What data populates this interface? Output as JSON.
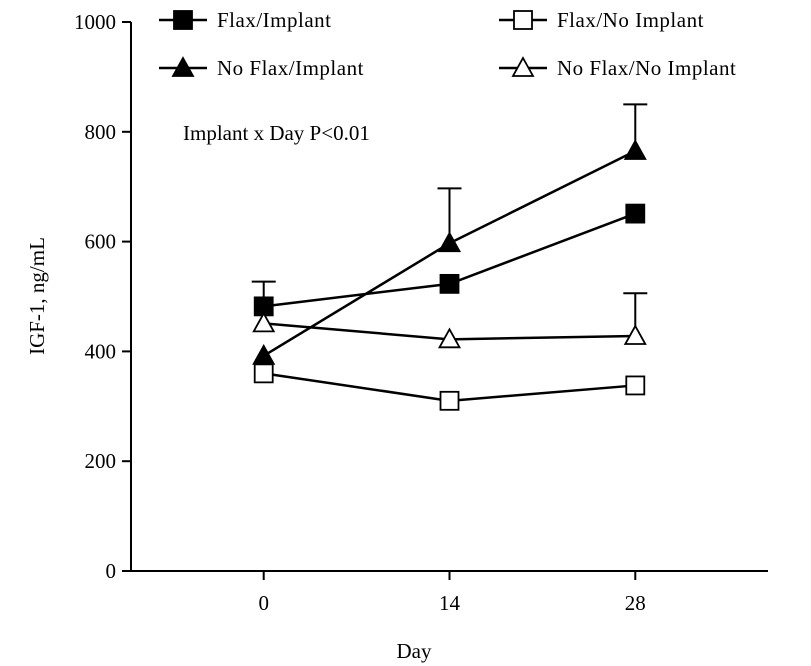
{
  "chart_data": {
    "type": "line",
    "title": "",
    "xlabel": "Day",
    "ylabel": "IGF-1, ng/mL",
    "x": [
      0,
      14,
      28
    ],
    "x_tick_labels": [
      "0",
      "14",
      "28"
    ],
    "y_ticks": [
      0,
      200,
      400,
      600,
      800,
      1000
    ],
    "ylim": [
      0,
      1000
    ],
    "xlim": [
      -10,
      38
    ],
    "grid": false,
    "legend_placement": "top",
    "annotation": "Implant x Day P<0.01",
    "series": [
      {
        "name": "Flax/Implant",
        "marker": "square",
        "fill": "#000000",
        "values": [
          482,
          523,
          651
        ],
        "error": [
          45,
          0,
          0
        ]
      },
      {
        "name": "Flax/No Implant",
        "marker": "square",
        "fill": "#ffffff",
        "values": [
          360,
          310,
          338
        ],
        "error": [
          0,
          0,
          0
        ]
      },
      {
        "name": "No Flax/Implant",
        "marker": "triangle",
        "fill": "#000000",
        "values": [
          392,
          597,
          765
        ],
        "error": [
          0,
          100,
          85
        ]
      },
      {
        "name": "No Flax/No Implant",
        "marker": "triangle",
        "fill": "#ffffff",
        "values": [
          451,
          422,
          428
        ],
        "error": [
          0,
          0,
          78
        ]
      }
    ]
  }
}
